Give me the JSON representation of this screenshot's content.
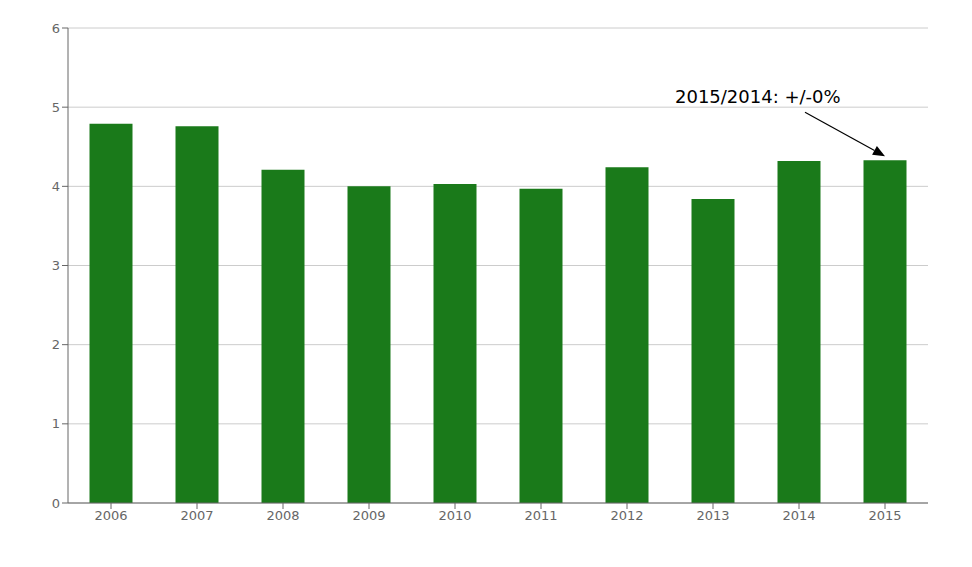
{
  "chart_data": {
    "type": "bar",
    "categories": [
      "2006",
      "2007",
      "2008",
      "2009",
      "2010",
      "2011",
      "2012",
      "2013",
      "2014",
      "2015"
    ],
    "values": [
      4.79,
      4.76,
      4.21,
      4.0,
      4.03,
      3.97,
      4.24,
      3.84,
      4.32,
      4.33
    ],
    "color": "#1a7a1a",
    "ylim": [
      0,
      6
    ],
    "yticks": [
      0,
      1,
      2,
      3,
      4,
      5,
      6
    ],
    "grid": true,
    "annotations": [
      "2015/2014: +/-0%"
    ]
  }
}
